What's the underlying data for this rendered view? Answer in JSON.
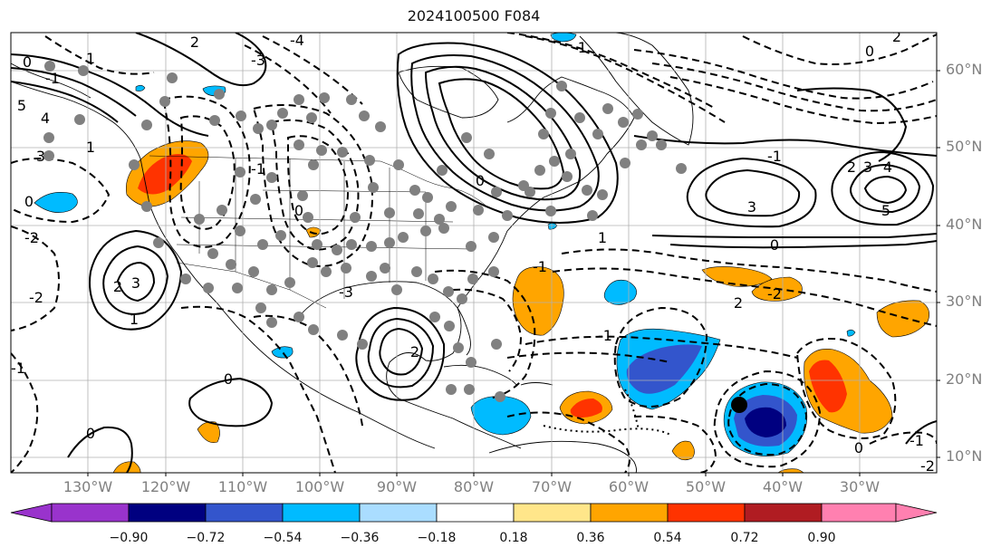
{
  "title": "2024100500 F084",
  "lat_labels": [
    "60°N",
    "50°N",
    "40°N",
    "30°N",
    "20°N",
    "10°N"
  ],
  "lon_labels": [
    "130°W",
    "120°W",
    "110°W",
    "100°W",
    "90°W",
    "80°W",
    "70°W",
    "60°W",
    "50°W",
    "40°W",
    "30°W"
  ],
  "colorbar": {
    "tick_labels": [
      "−0.90",
      "−0.72",
      "−0.54",
      "−0.36",
      "−0.18",
      "0.18",
      "0.36",
      "0.54",
      "0.72",
      "0.90"
    ],
    "colors": [
      "#9933cc",
      "#000080",
      "#3355cc",
      "#00bbff",
      "#aaddff",
      "#ffffff",
      "#ffe68a",
      "#ffa500",
      "#ff3300",
      "#b01c22",
      "#ff80b0"
    ]
  },
  "contour_labels": [
    "0",
    "-1",
    "-2",
    "1",
    "2",
    "3",
    "4",
    "5",
    "-3",
    "-4",
    "0",
    "1",
    "-1",
    "-1",
    "2",
    "3",
    "-3",
    "-2",
    "1",
    "0",
    "2",
    "-1",
    "3",
    "2",
    "3",
    "4",
    "5",
    "-1",
    "0",
    "0",
    "1",
    "-2",
    "2",
    "0",
    "-1",
    "-2",
    "-1",
    "2",
    "0",
    "0",
    "-1",
    "0"
  ]
}
